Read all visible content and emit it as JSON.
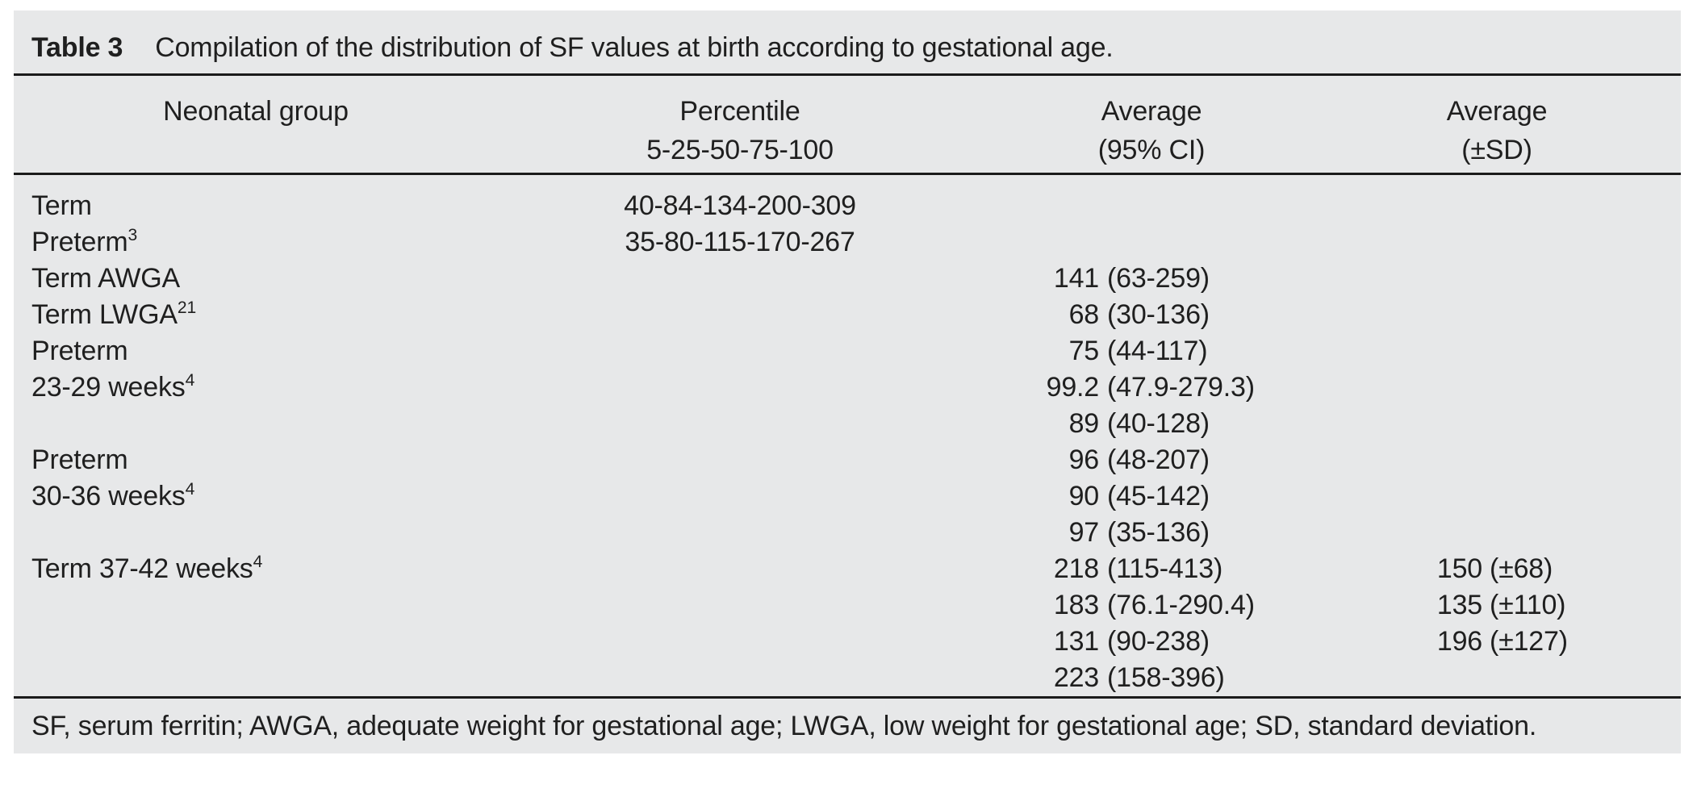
{
  "caption": {
    "label": "Table 3",
    "text": "Compilation of the distribution of SF values at birth according to gestational age."
  },
  "header": {
    "group": {
      "line1": "Neonatal group"
    },
    "percentile": {
      "line1": "Percentile",
      "line2": "5-25-50-75-100"
    },
    "avg_ci": {
      "line1": "Average",
      "line2": "(95% CI)"
    },
    "avg_sd": {
      "line1": "Average",
      "line2": "(±SD)"
    }
  },
  "rows": [
    {
      "group": "Term",
      "percentile": "40-84-134-200-309"
    },
    {
      "group": "Preterm",
      "group_sup": "3",
      "percentile": "35-80-115-170-267"
    },
    {
      "group": "Term AWGA",
      "ci_value": "141",
      "ci_range": "(63-259)"
    },
    {
      "group": "Term LWGA",
      "group_sup": "21",
      "ci_value": "68",
      "ci_range": "(30-136)"
    },
    {
      "group": "Preterm",
      "ci_value": "75",
      "ci_range": "(44-117)"
    },
    {
      "group": "23-29 weeks",
      "group_sup": "4",
      "ci_value": "99.2",
      "ci_range": "(47.9-279.3)"
    },
    {
      "ci_value": "89",
      "ci_range": "(40-128)"
    },
    {
      "group": "Preterm",
      "ci_value": "96",
      "ci_range": "(48-207)"
    },
    {
      "group": "30-36 weeks",
      "group_sup": "4",
      "ci_value": "90",
      "ci_range": "(45-142)"
    },
    {
      "ci_value": "97",
      "ci_range": "(35-136)"
    },
    {
      "group": "Term 37-42 weeks",
      "group_sup": "4",
      "ci_value": "218",
      "ci_range": "(115-413)",
      "sd_value": "150",
      "sd_range": "(±68)"
    },
    {
      "ci_value": "183",
      "ci_range": "(76.1-290.4)",
      "sd_value": "135",
      "sd_range": "(±110)"
    },
    {
      "ci_value": "131",
      "ci_range": "(90-238)",
      "sd_value": "196",
      "sd_range": "(±127)"
    },
    {
      "ci_value": "223",
      "ci_range": "(158-396)"
    }
  ],
  "footnote": "SF, serum ferritin; AWGA, adequate weight for gestational age; LWGA, low weight for gestational age; SD, standard deviation.",
  "colors": {
    "panel_bg": "#e7e8e9",
    "text": "#1f1f1f",
    "rule": "#1b1b1b"
  }
}
